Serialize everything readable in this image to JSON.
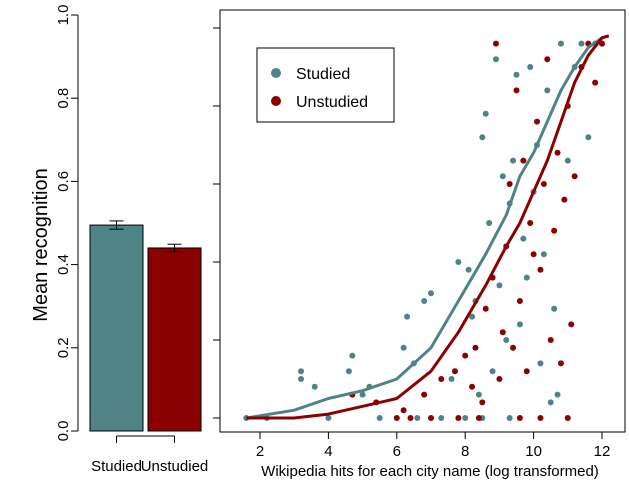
{
  "colors": {
    "studied": "#4f8486",
    "unstudied": "#8b0000"
  },
  "chart_data": [
    {
      "type": "bar",
      "ylabel": "Mean recognition",
      "ylim": [
        0,
        1
      ],
      "yticks": [
        "0.0",
        "0.2",
        "0.4",
        "0.6",
        "0.8",
        "1.0"
      ],
      "categories": [
        "Studied",
        "Unstudied"
      ],
      "values": [
        0.495,
        0.44
      ],
      "error": [
        0.01,
        0.009
      ]
    },
    {
      "type": "scatter",
      "xlabel": "Wikipedia hits for each city name (log transformed)",
      "xlim": [
        1.2,
        12.7
      ],
      "ylim": [
        0,
        1
      ],
      "xticks": [
        "2",
        "4",
        "6",
        "8",
        "10",
        "12"
      ],
      "legend": {
        "position": "top-left",
        "entries": [
          "Studied",
          "Unstudied"
        ]
      },
      "series": [
        {
          "name": "Studied",
          "points": [
            [
              3.2,
              0.12
            ],
            [
              3.2,
              0.1
            ],
            [
              3.6,
              0.08
            ],
            [
              4.6,
              0.12
            ],
            [
              4.7,
              0.16
            ],
            [
              5.0,
              0.06
            ],
            [
              5.2,
              0.08
            ],
            [
              6.2,
              0.18
            ],
            [
              6.3,
              0.26
            ],
            [
              6.5,
              0.14
            ],
            [
              6.8,
              0.3
            ],
            [
              7.0,
              0.32
            ],
            [
              7.6,
              0.1
            ],
            [
              7.8,
              0.4
            ],
            [
              8.1,
              0.38
            ],
            [
              8.2,
              0.26
            ],
            [
              8.3,
              0.3
            ],
            [
              8.4,
              0.06
            ],
            [
              8.5,
              0.72
            ],
            [
              8.6,
              0.78
            ],
            [
              8.7,
              0.5
            ],
            [
              8.8,
              0.12
            ],
            [
              8.9,
              0.92
            ],
            [
              9.0,
              0.34
            ],
            [
              9.1,
              0.62
            ],
            [
              9.2,
              0.2
            ],
            [
              9.3,
              0.55
            ],
            [
              9.4,
              0.66
            ],
            [
              9.5,
              0.88
            ],
            [
              9.6,
              0.24
            ],
            [
              9.7,
              0.46
            ],
            [
              9.8,
              0.36
            ],
            [
              9.9,
              0.9
            ],
            [
              10.0,
              0.58
            ],
            [
              10.1,
              0.7
            ],
            [
              10.2,
              0.14
            ],
            [
              10.3,
              0.42
            ],
            [
              10.4,
              0.84
            ],
            [
              10.5,
              0.04
            ],
            [
              10.6,
              0.28
            ],
            [
              10.7,
              0.06
            ],
            [
              10.8,
              0.96
            ],
            [
              11.0,
              0.66
            ],
            [
              11.2,
              0.9
            ],
            [
              11.4,
              0.96
            ],
            [
              11.6,
              0.72
            ],
            [
              11.8,
              0.96
            ],
            [
              12.0,
              0.96
            ],
            [
              1.6,
              0.0
            ],
            [
              2.2,
              0.0
            ],
            [
              4.0,
              0.0
            ],
            [
              5.5,
              0.0
            ],
            [
              6.6,
              0.0
            ],
            [
              7.3,
              0.0
            ],
            [
              8.0,
              0.0
            ],
            [
              8.5,
              0.0
            ],
            [
              9.3,
              0.0
            ]
          ],
          "smooth": [
            [
              1.6,
              0.0
            ],
            [
              3,
              0.02
            ],
            [
              4,
              0.05
            ],
            [
              5,
              0.07
            ],
            [
              6,
              0.1
            ],
            [
              7,
              0.18
            ],
            [
              7.8,
              0.3
            ],
            [
              8.6,
              0.42
            ],
            [
              9.2,
              0.52
            ],
            [
              9.6,
              0.62
            ],
            [
              10.0,
              0.68
            ],
            [
              10.4,
              0.76
            ],
            [
              10.8,
              0.84
            ],
            [
              11.2,
              0.9
            ],
            [
              11.6,
              0.95
            ],
            [
              12.0,
              0.975
            ],
            [
              12.2,
              0.98
            ]
          ]
        },
        {
          "name": "Unstudied",
          "points": [
            [
              4.7,
              0.06
            ],
            [
              5.4,
              0.04
            ],
            [
              6.2,
              0.02
            ],
            [
              6.8,
              0.06
            ],
            [
              7.3,
              0.1
            ],
            [
              7.7,
              0.12
            ],
            [
              8.0,
              0.16
            ],
            [
              8.2,
              0.08
            ],
            [
              8.3,
              0.18
            ],
            [
              8.5,
              0.04
            ],
            [
              8.6,
              0.28
            ],
            [
              8.8,
              0.36
            ],
            [
              8.9,
              0.96
            ],
            [
              9.0,
              0.1
            ],
            [
              9.1,
              0.22
            ],
            [
              9.2,
              0.44
            ],
            [
              9.3,
              0.6
            ],
            [
              9.4,
              0.18
            ],
            [
              9.5,
              0.84
            ],
            [
              9.6,
              0.3
            ],
            [
              9.7,
              0.66
            ],
            [
              9.8,
              0.12
            ],
            [
              9.9,
              0.5
            ],
            [
              10.0,
              0.42
            ],
            [
              10.1,
              0.76
            ],
            [
              10.2,
              0.38
            ],
            [
              10.3,
              0.6
            ],
            [
              10.4,
              0.92
            ],
            [
              10.5,
              0.2
            ],
            [
              10.6,
              0.48
            ],
            [
              10.7,
              0.68
            ],
            [
              10.8,
              0.14
            ],
            [
              10.9,
              0.56
            ],
            [
              11.0,
              0.8
            ],
            [
              11.1,
              0.24
            ],
            [
              11.2,
              0.62
            ],
            [
              11.4,
              0.9
            ],
            [
              11.6,
              0.96
            ],
            [
              11.8,
              0.86
            ],
            [
              12.0,
              0.96
            ],
            [
              6.0,
              0.0
            ],
            [
              6.4,
              0.0
            ],
            [
              7.0,
              0.0
            ],
            [
              7.8,
              0.0
            ],
            [
              8.4,
              0.0
            ],
            [
              9.6,
              0.0
            ],
            [
              10.2,
              0.0
            ],
            [
              11.0,
              0.0
            ]
          ],
          "smooth": [
            [
              1.6,
              0.0
            ],
            [
              3,
              0.0
            ],
            [
              4,
              0.01
            ],
            [
              5,
              0.03
            ],
            [
              6,
              0.05
            ],
            [
              7,
              0.12
            ],
            [
              7.8,
              0.22
            ],
            [
              8.6,
              0.34
            ],
            [
              9.2,
              0.44
            ],
            [
              9.6,
              0.5
            ],
            [
              10.0,
              0.58
            ],
            [
              10.4,
              0.66
            ],
            [
              10.8,
              0.76
            ],
            [
              11.2,
              0.86
            ],
            [
              11.6,
              0.93
            ],
            [
              12.0,
              0.975
            ],
            [
              12.2,
              0.98
            ]
          ]
        }
      ]
    }
  ]
}
